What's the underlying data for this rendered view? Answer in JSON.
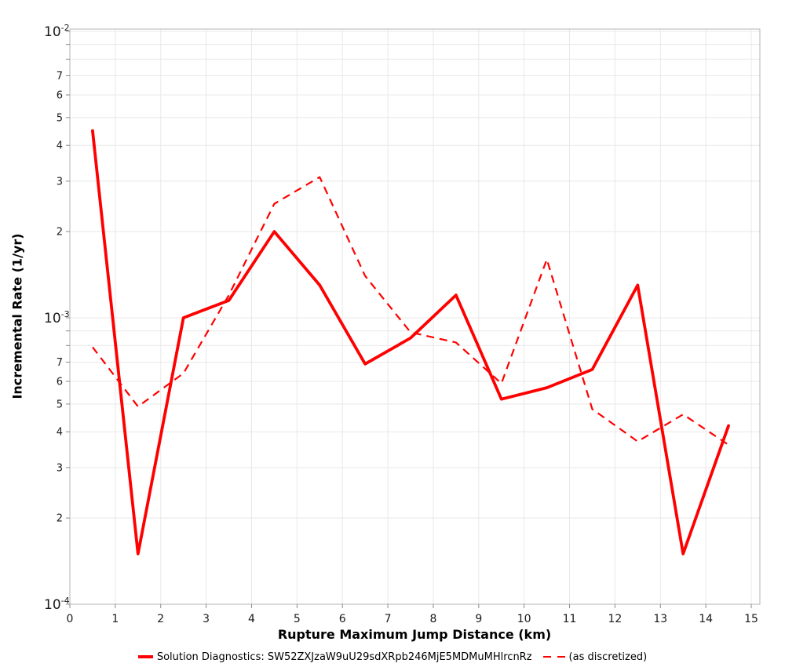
{
  "chart_data": {
    "type": "line",
    "title": "",
    "x_axis": {
      "title": "Rupture Maximum Jump Distance (km)",
      "min": 0,
      "max": 15,
      "ticks": [
        0,
        1,
        2,
        3,
        4,
        5,
        6,
        7,
        8,
        9,
        10,
        11,
        12,
        13,
        14,
        15
      ]
    },
    "y_axis": {
      "title": "Incremental Rate (1/yr)",
      "scale": "log10",
      "min": 0.0001,
      "max": 0.01,
      "decade_ticks": [
        {
          "value": 0.01,
          "base": "10",
          "exponent": "-2"
        },
        {
          "value": 0.001,
          "base": "10",
          "exponent": "-3"
        },
        {
          "value": 0.0001,
          "base": "10",
          "exponent": "-4"
        }
      ],
      "labeled_minor_multipliers": [
        7,
        6,
        5,
        4,
        3,
        2
      ],
      "gridline_multipliers": [
        1,
        2,
        3,
        4,
        5,
        6,
        7,
        8,
        9
      ],
      "grid": true
    },
    "x": [
      0.5,
      1.5,
      2.5,
      3.5,
      4.5,
      5.5,
      6.5,
      7.5,
      8.5,
      9.5,
      10.5,
      11.5,
      12.5,
      13.5,
      14.5
    ],
    "series": [
      {
        "name": "Solution Diagnostics: SW52ZXJzaW9uU29sdXRpb246MjE5MDMuMHlrcnRz",
        "style": "solid",
        "color": "#ff0000",
        "stroke_width": 3.8,
        "values": [
          0.0045,
          0.00015,
          0.001,
          0.00115,
          0.002,
          0.0013,
          0.00069,
          0.00085,
          0.0012,
          0.00052,
          0.00057,
          0.00066,
          0.0013,
          0.00015,
          0.00042
        ]
      },
      {
        "name": "(as discretized)",
        "style": "dashed",
        "color": "#ff0000",
        "stroke_width": 2.2,
        "values": [
          0.00079,
          0.00049,
          0.00064,
          0.0012,
          0.0025,
          0.0031,
          0.0014,
          0.00089,
          0.00082,
          0.00059,
          0.0016,
          0.00048,
          0.00037,
          0.00046,
          0.00036
        ]
      }
    ],
    "legend_position": "bottom-center"
  },
  "colors": {
    "line_red": "#ff0000",
    "grid": "#e8e8e8",
    "frame": "#b4b4b4",
    "tick": "#8a8a8a",
    "tick_text": "#1a1a1a",
    "background": "#ffffff"
  }
}
